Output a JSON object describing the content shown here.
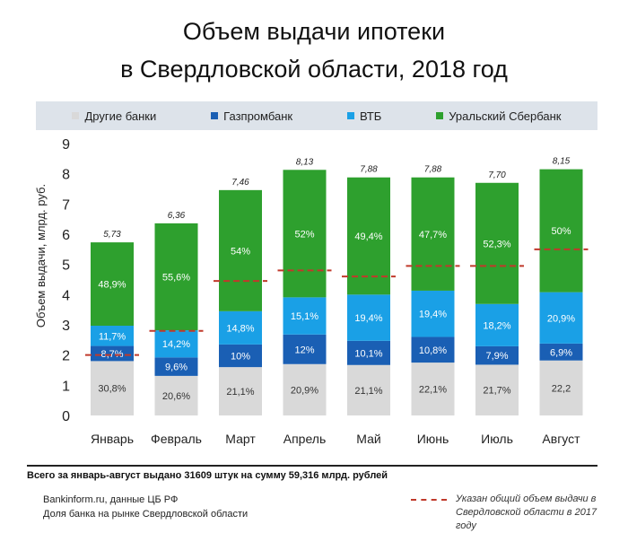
{
  "title_line1": "Объем выдачи ипотеки",
  "title_line2": "в Свердловской области, 2018 год",
  "colors": {
    "other": "#d9d9d9",
    "gazprom": "#1a5fb4",
    "vtb": "#1aa0e6",
    "sber": "#2ea02e",
    "target": "#c0392b"
  },
  "legend": [
    "Другие банки",
    "Газпромбанк",
    "ВТБ",
    "Уральский Сбербанк"
  ],
  "summary": "Всего за январь-август выдано 31609  штук на сумму 59,316  млрд.  рублей",
  "source_line1": "Bankinform.ru,  данные ЦБ РФ",
  "source_line2": "Доля банка на рынке Свердловской области",
  "note": "Указан общий объем выдачи в Свердловской области в 2017 году",
  "chart_data": {
    "type": "bar",
    "stacked": true,
    "ylabel": "Объем выдачи, млрд. руб.",
    "ylim": [
      0,
      9
    ],
    "yticks": [
      "0",
      "1",
      "2",
      "3",
      "4",
      "5",
      "6",
      "7",
      "8",
      "9"
    ],
    "categories": [
      "Январь",
      "Февраль",
      "Март",
      "Апрель",
      "Май",
      "Июнь",
      "Июль",
      "Август"
    ],
    "totals": [
      5.73,
      6.36,
      7.46,
      8.13,
      7.88,
      7.88,
      7.7,
      8.15
    ],
    "total_labels": [
      "5,73",
      "6,36",
      "7,46",
      "8,13",
      "7,88",
      "7,88",
      "7,70",
      "8,15"
    ],
    "series": [
      {
        "name": "Другие банки",
        "values": [
          1.8,
          1.31,
          1.6,
          1.7,
          1.67,
          1.75,
          1.68,
          1.82
        ],
        "labels": [
          "30,8%",
          "20,6%",
          "21,1%",
          "20,9%",
          "21,1%",
          "22,1%",
          "21,7%",
          "22,2"
        ]
      },
      {
        "name": "Газпромбанк",
        "values": [
          0.5,
          0.61,
          0.75,
          0.98,
          0.8,
          0.85,
          0.61,
          0.56
        ],
        "labels": [
          "8,7%",
          "9,6%",
          "10%",
          "12%",
          "10,1%",
          "10,8%",
          "7,9%",
          "6,9%"
        ]
      },
      {
        "name": "ВТБ",
        "values": [
          0.67,
          0.9,
          1.1,
          1.23,
          1.53,
          1.53,
          1.4,
          1.7
        ],
        "labels": [
          "11,7%",
          "14,2%",
          "14,8%",
          "15,1%",
          "19,4%",
          "19,4%",
          "18,2%",
          "20,9%"
        ]
      },
      {
        "name": "Уральский Сбербанк",
        "values": [
          2.76,
          3.54,
          4.01,
          4.22,
          3.88,
          3.75,
          4.01,
          4.07
        ],
        "labels": [
          "48,9%",
          "55,6%",
          "54%",
          "52%",
          "49,4%",
          "47,7%",
          "52,3%",
          "50%"
        ]
      }
    ],
    "reference_2017": [
      2.0,
      2.8,
      4.45,
      4.8,
      4.6,
      4.95,
      4.95,
      5.5
    ]
  }
}
